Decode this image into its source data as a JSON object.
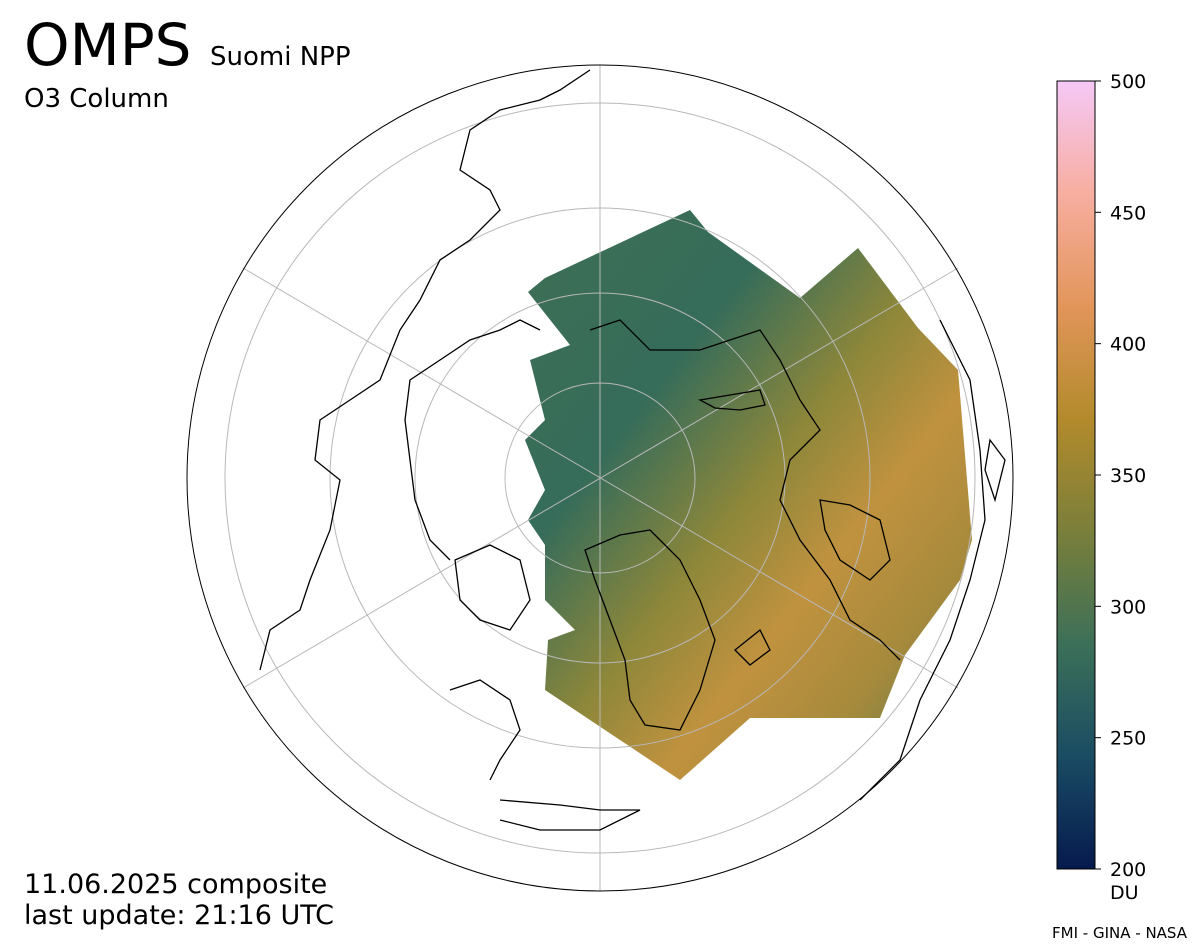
{
  "header": {
    "title": "OMPS",
    "subtitle": "Suomi NPP",
    "product": "O3 Column"
  },
  "footer": {
    "date": "11.06.2025 composite",
    "update": "last update: 21:16 UTC",
    "credit": "FMI - GINA - NASA"
  },
  "colorbar": {
    "lim": [
      200,
      500
    ],
    "ticks": [
      200,
      250,
      300,
      350,
      400,
      450,
      500
    ],
    "unit": "DU",
    "colors": [
      "#061a4e",
      "#1a4c63",
      "#3c7058",
      "#7a7f3a",
      "#b38a2c",
      "#e2955a",
      "#f7aea0",
      "#f6c8f7"
    ]
  }
}
